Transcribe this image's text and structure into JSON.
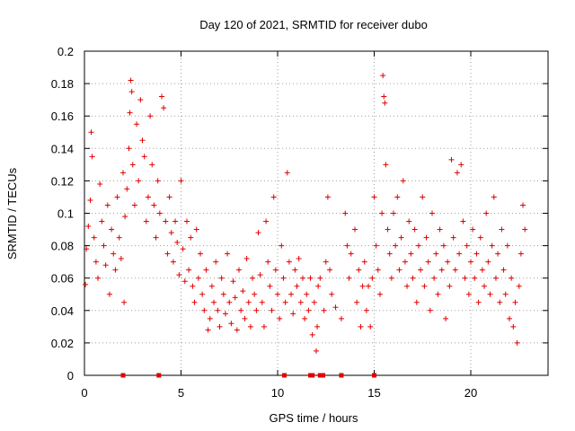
{
  "chart_data": {
    "type": "scatter",
    "title": "Day 120 of 2021, SRMTID for receiver dubo",
    "xlabel": "GPS time / hours",
    "ylabel": "SRMTID / TECUs",
    "xlim": [
      0,
      24
    ],
    "ylim": [
      0,
      0.2
    ],
    "xticks": [
      0,
      5,
      10,
      15,
      20
    ],
    "xtick_labels": [
      "0",
      "5",
      "10",
      "15",
      "20"
    ],
    "yticks": [
      0,
      0.02,
      0.04,
      0.06,
      0.08,
      0.1,
      0.12,
      0.14,
      0.16,
      0.18,
      0.2
    ],
    "ytick_labels": [
      "0",
      "0.02",
      "0.04",
      "0.06",
      "0.08",
      "0.1",
      "0.12",
      "0.14",
      "0.16",
      "0.18",
      "0.2"
    ],
    "grid": true,
    "series": [
      {
        "name": "SRMTID",
        "marker": "plus",
        "color": "#e00000",
        "points": [
          [
            0.05,
            0.056
          ],
          [
            0.1,
            0.078
          ],
          [
            0.2,
            0.092
          ],
          [
            0.3,
            0.108
          ],
          [
            0.35,
            0.15
          ],
          [
            0.4,
            0.135
          ],
          [
            0.5,
            0.085
          ],
          [
            0.6,
            0.07
          ],
          [
            0.7,
            0.06
          ],
          [
            0.8,
            0.118
          ],
          [
            0.9,
            0.095
          ],
          [
            1.0,
            0.08
          ],
          [
            1.1,
            0.068
          ],
          [
            1.2,
            0.105
          ],
          [
            1.3,
            0.05
          ],
          [
            1.4,
            0.09
          ],
          [
            1.5,
            0.075
          ],
          [
            1.6,
            0.065
          ],
          [
            1.7,
            0.11
          ],
          [
            1.8,
            0.085
          ],
          [
            1.9,
            0.072
          ],
          [
            2.0,
            0.125
          ],
          [
            2.05,
            0.045
          ],
          [
            2.1,
            0.098
          ],
          [
            2.2,
            0.115
          ],
          [
            2.3,
            0.14
          ],
          [
            2.35,
            0.162
          ],
          [
            2.4,
            0.182
          ],
          [
            2.45,
            0.175
          ],
          [
            2.5,
            0.13
          ],
          [
            2.6,
            0.105
          ],
          [
            2.7,
            0.155
          ],
          [
            2.8,
            0.12
          ],
          [
            2.9,
            0.17
          ],
          [
            3.0,
            0.145
          ],
          [
            3.1,
            0.135
          ],
          [
            3.2,
            0.095
          ],
          [
            3.3,
            0.11
          ],
          [
            3.4,
            0.16
          ],
          [
            3.5,
            0.13
          ],
          [
            3.6,
            0.105
          ],
          [
            3.7,
            0.085
          ],
          [
            3.8,
            0.12
          ],
          [
            3.9,
            0.1
          ],
          [
            4.0,
            0.172
          ],
          [
            4.1,
            0.165
          ],
          [
            4.2,
            0.095
          ],
          [
            4.3,
            0.075
          ],
          [
            4.4,
            0.11
          ],
          [
            4.5,
            0.088
          ],
          [
            4.6,
            0.07
          ],
          [
            4.7,
            0.095
          ],
          [
            4.8,
            0.082
          ],
          [
            4.9,
            0.062
          ],
          [
            5.0,
            0.12
          ],
          [
            5.1,
            0.078
          ],
          [
            5.2,
            0.058
          ],
          [
            5.3,
            0.095
          ],
          [
            5.4,
            0.065
          ],
          [
            5.5,
            0.085
          ],
          [
            5.6,
            0.055
          ],
          [
            5.7,
            0.045
          ],
          [
            5.8,
            0.09
          ],
          [
            5.9,
            0.06
          ],
          [
            6.0,
            0.075
          ],
          [
            6.1,
            0.05
          ],
          [
            6.2,
            0.04
          ],
          [
            6.3,
            0.065
          ],
          [
            6.4,
            0.028
          ],
          [
            6.5,
            0.035
          ],
          [
            6.6,
            0.055
          ],
          [
            6.7,
            0.045
          ],
          [
            6.8,
            0.07
          ],
          [
            6.9,
            0.04
          ],
          [
            7.0,
            0.03
          ],
          [
            7.1,
            0.06
          ],
          [
            7.2,
            0.05
          ],
          [
            7.3,
            0.038
          ],
          [
            7.4,
            0.075
          ],
          [
            7.5,
            0.045
          ],
          [
            7.6,
            0.032
          ],
          [
            7.7,
            0.058
          ],
          [
            7.8,
            0.048
          ],
          [
            7.9,
            0.028
          ],
          [
            8.0,
            0.065
          ],
          [
            8.1,
            0.04
          ],
          [
            8.2,
            0.052
          ],
          [
            8.3,
            0.035
          ],
          [
            8.4,
            0.072
          ],
          [
            8.5,
            0.045
          ],
          [
            8.6,
            0.03
          ],
          [
            8.7,
            0.06
          ],
          [
            8.8,
            0.05
          ],
          [
            8.9,
            0.04
          ],
          [
            9.0,
            0.088
          ],
          [
            9.1,
            0.062
          ],
          [
            9.2,
            0.045
          ],
          [
            9.3,
            0.03
          ],
          [
            9.4,
            0.095
          ],
          [
            9.5,
            0.07
          ],
          [
            9.6,
            0.055
          ],
          [
            9.7,
            0.04
          ],
          [
            9.8,
            0.11
          ],
          [
            9.9,
            0.065
          ],
          [
            10.0,
            0.05
          ],
          [
            10.1,
            0.035
          ],
          [
            10.2,
            0.08
          ],
          [
            10.3,
            0.06
          ],
          [
            10.4,
            0.045
          ],
          [
            10.5,
            0.125
          ],
          [
            10.6,
            0.07
          ],
          [
            10.7,
            0.05
          ],
          [
            10.8,
            0.038
          ],
          [
            10.9,
            0.065
          ],
          [
            11.0,
            0.055
          ],
          [
            11.1,
            0.072
          ],
          [
            11.2,
            0.045
          ],
          [
            11.3,
            0.06
          ],
          [
            11.4,
            0.035
          ],
          [
            11.5,
            0.05
          ],
          [
            11.6,
            0.04
          ],
          [
            11.7,
            0.06
          ],
          [
            11.8,
            0.025
          ],
          [
            11.9,
            0.045
          ],
          [
            12.0,
            0.015
          ],
          [
            12.05,
            0.03
          ],
          [
            12.1,
            0.055
          ],
          [
            12.2,
            0.06
          ],
          [
            12.4,
            0.04
          ],
          [
            12.5,
            0.07
          ],
          [
            12.6,
            0.11
          ],
          [
            12.7,
            0.065
          ],
          [
            12.8,
            0.05
          ],
          [
            13.0,
            0.042
          ],
          [
            13.3,
            0.035
          ],
          [
            13.5,
            0.1
          ],
          [
            13.6,
            0.08
          ],
          [
            13.7,
            0.06
          ],
          [
            13.8,
            0.075
          ],
          [
            14.0,
            0.09
          ],
          [
            14.1,
            0.045
          ],
          [
            14.2,
            0.065
          ],
          [
            14.3,
            0.03
          ],
          [
            14.4,
            0.055
          ],
          [
            14.5,
            0.07
          ],
          [
            14.6,
            0.04
          ],
          [
            14.7,
            0.055
          ],
          [
            14.8,
            0.03
          ],
          [
            14.9,
            0.06
          ],
          [
            15.0,
            0.11
          ],
          [
            15.1,
            0.08
          ],
          [
            15.2,
            0.065
          ],
          [
            15.3,
            0.05
          ],
          [
            15.4,
            0.1
          ],
          [
            15.45,
            0.185
          ],
          [
            15.5,
            0.172
          ],
          [
            15.55,
            0.168
          ],
          [
            15.6,
            0.13
          ],
          [
            15.7,
            0.09
          ],
          [
            15.8,
            0.075
          ],
          [
            15.9,
            0.06
          ],
          [
            16.0,
            0.1
          ],
          [
            16.1,
            0.08
          ],
          [
            16.2,
            0.11
          ],
          [
            16.3,
            0.065
          ],
          [
            16.4,
            0.085
          ],
          [
            16.5,
            0.12
          ],
          [
            16.6,
            0.07
          ],
          [
            16.7,
            0.055
          ],
          [
            16.8,
            0.095
          ],
          [
            16.9,
            0.075
          ],
          [
            17.0,
            0.06
          ],
          [
            17.1,
            0.09
          ],
          [
            17.2,
            0.045
          ],
          [
            17.3,
            0.08
          ],
          [
            17.4,
            0.065
          ],
          [
            17.5,
            0.11
          ],
          [
            17.6,
            0.055
          ],
          [
            17.7,
            0.085
          ],
          [
            17.8,
            0.07
          ],
          [
            17.9,
            0.04
          ],
          [
            18.0,
            0.1
          ],
          [
            18.1,
            0.06
          ],
          [
            18.2,
            0.075
          ],
          [
            18.3,
            0.05
          ],
          [
            18.4,
            0.09
          ],
          [
            18.5,
            0.065
          ],
          [
            18.6,
            0.08
          ],
          [
            18.7,
            0.035
          ],
          [
            18.8,
            0.07
          ],
          [
            18.9,
            0.055
          ],
          [
            19.0,
            0.133
          ],
          [
            19.1,
            0.085
          ],
          [
            19.2,
            0.065
          ],
          [
            19.3,
            0.125
          ],
          [
            19.4,
            0.075
          ],
          [
            19.5,
            0.13
          ],
          [
            19.6,
            0.095
          ],
          [
            19.7,
            0.06
          ],
          [
            19.8,
            0.08
          ],
          [
            19.9,
            0.05
          ],
          [
            20.0,
            0.07
          ],
          [
            20.1,
            0.09
          ],
          [
            20.2,
            0.06
          ],
          [
            20.3,
            0.075
          ],
          [
            20.4,
            0.045
          ],
          [
            20.5,
            0.085
          ],
          [
            20.6,
            0.065
          ],
          [
            20.7,
            0.055
          ],
          [
            20.8,
            0.1
          ],
          [
            20.9,
            0.07
          ],
          [
            21.0,
            0.05
          ],
          [
            21.1,
            0.08
          ],
          [
            21.2,
            0.11
          ],
          [
            21.3,
            0.06
          ],
          [
            21.4,
            0.075
          ],
          [
            21.5,
            0.045
          ],
          [
            21.6,
            0.09
          ],
          [
            21.7,
            0.065
          ],
          [
            21.8,
            0.05
          ],
          [
            21.9,
            0.08
          ],
          [
            22.0,
            0.035
          ],
          [
            22.1,
            0.06
          ],
          [
            22.2,
            0.03
          ],
          [
            22.3,
            0.045
          ],
          [
            22.4,
            0.02
          ],
          [
            22.5,
            0.055
          ],
          [
            22.6,
            0.075
          ],
          [
            22.7,
            0.105
          ],
          [
            22.8,
            0.09
          ]
        ]
      }
    ],
    "gap_markers": {
      "name": "missing-data",
      "y": 0,
      "x": [
        2.0,
        3.85,
        10.35,
        11.7,
        11.8,
        12.2,
        12.35,
        13.3,
        15.0
      ]
    }
  }
}
